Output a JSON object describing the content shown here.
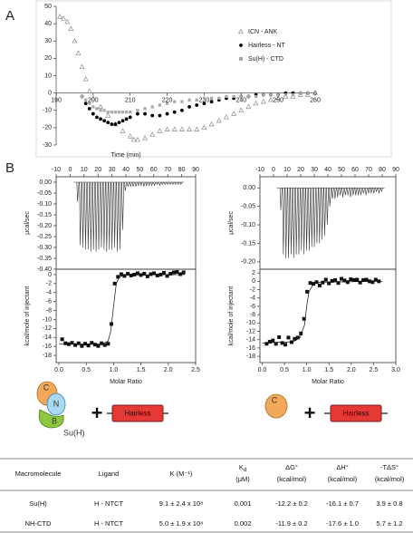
{
  "panel_labels": [
    "A",
    "B"
  ],
  "chart_data": [
    {
      "type": "scatter",
      "frame": false,
      "legend": "upper right",
      "xlim": [
        190,
        260
      ],
      "xticks": [
        190,
        200,
        210,
        220,
        230,
        240,
        250,
        260
      ],
      "ylim": [
        -30,
        50
      ],
      "yticks": [
        -30,
        -20,
        -10,
        0,
        10,
        20,
        30,
        40,
        50
      ],
      "series": [
        {
          "name": "ICN - ANK",
          "color": "#8c8c8c",
          "marker": "triangle",
          "x": [
            191,
            192,
            193,
            194,
            195,
            196,
            197,
            198,
            199,
            200,
            202,
            204,
            206,
            208,
            210,
            211,
            212,
            214,
            216,
            218,
            220,
            222,
            224,
            226,
            228,
            230,
            232,
            234,
            236,
            238,
            240,
            242,
            244,
            246,
            248,
            250,
            252,
            254,
            256,
            258,
            260
          ],
          "values": [
            44,
            43,
            41,
            37,
            30,
            23,
            15,
            8,
            1,
            -3,
            -8,
            -13,
            -18,
            -22,
            -25,
            -27,
            -27,
            -26,
            -24,
            -22,
            -21,
            -21,
            -21,
            -21,
            -21,
            -20,
            -18,
            -16,
            -14,
            -12,
            -10,
            -8,
            -6,
            -5,
            -4,
            -3,
            -2,
            -2,
            -1,
            -1,
            0
          ]
        },
        {
          "name": "Hairless - NT",
          "color": "#000000",
          "marker": "circle",
          "x": [
            197,
            198,
            199,
            200,
            201,
            202,
            203,
            204,
            205,
            206,
            207,
            208,
            209,
            210,
            212,
            214,
            216,
            218,
            220,
            222,
            224,
            226,
            228,
            230,
            232,
            234,
            236,
            238,
            240,
            242,
            244,
            246,
            248,
            250,
            252,
            254,
            256,
            258,
            260
          ],
          "values": [
            -2,
            -6,
            -9,
            -12,
            -14,
            -15,
            -16,
            -17,
            -18,
            -18,
            -17,
            -16,
            -15,
            -14,
            -12,
            -12,
            -13,
            -13,
            -12,
            -11,
            -10,
            -8,
            -7,
            -6,
            -5,
            -4,
            -3,
            -3,
            -2,
            -2,
            -1,
            -1,
            -1,
            -1,
            0,
            0,
            0,
            0,
            0
          ]
        },
        {
          "name": "Su(H) - CTD",
          "color": "#a6a6a6",
          "marker": "square",
          "x": [
            197,
            198,
            199,
            200,
            201,
            202,
            203,
            204,
            205,
            206,
            207,
            208,
            209,
            210,
            212,
            214,
            216,
            218,
            220,
            222,
            224,
            226,
            228,
            230,
            232,
            234,
            236,
            238,
            240,
            242,
            244,
            246,
            248,
            250,
            252,
            254,
            256,
            258,
            260
          ],
          "values": [
            -2,
            -4,
            -6,
            -8,
            -9,
            -10,
            -10,
            -11,
            -11,
            -11,
            -11,
            -11,
            -11,
            -11,
            -10,
            -9,
            -8,
            -7,
            -6,
            -5,
            -5,
            -4,
            -4,
            -3,
            -3,
            -3,
            -2,
            -2,
            -2,
            -2,
            -2,
            -1,
            -1,
            -1,
            -1,
            -1,
            0,
            0,
            0
          ]
        }
      ]
    },
    {
      "type": "injection",
      "frame": true,
      "xaxis_position": "top",
      "x_label": "Time (min)",
      "y_label": "μcal/sec",
      "xlim": [
        -10,
        90
      ],
      "xticks": [
        -10,
        0,
        10,
        20,
        30,
        40,
        50,
        60,
        70,
        80,
        90
      ],
      "ylim": [
        -0.4,
        0.025
      ],
      "yticks": [
        {
          "value": 0,
          "label": "0.00"
        },
        -0.05,
        {
          "value": -0.1,
          "label": "-0.10"
        },
        -0.15,
        {
          "value": -0.2,
          "label": "-0.20"
        },
        -0.25,
        {
          "value": -0.3,
          "label": "-0.30"
        },
        -0.35,
        {
          "value": -0.4,
          "label": "-0.40"
        }
      ],
      "series": [
        {
          "color": "#333333",
          "x": [
            5,
            6.9,
            8.8,
            10.7,
            12.6,
            14.5,
            16.4,
            18.3,
            20.2,
            22.1,
            24,
            25.9,
            27.8,
            29.7,
            31.6,
            33.5,
            35.4,
            37.3,
            39.2,
            41.1,
            43,
            44.9,
            46.8,
            48.7,
            50.6,
            52.5,
            54.4,
            56.3,
            58.2,
            60.1,
            62,
            63.9,
            65.8,
            67.7,
            69.6,
            71.5,
            73.4,
            75.3,
            77.2,
            79.1
          ],
          "values": [
            -0.09,
            -0.29,
            -0.3,
            -0.31,
            -0.31,
            -0.32,
            -0.31,
            -0.32,
            -0.31,
            -0.3,
            -0.31,
            -0.32,
            -0.31,
            -0.31,
            -0.3,
            -0.32,
            -0.31,
            -0.22,
            -0.04,
            -0.02,
            -0.02,
            -0.02,
            -0.02,
            -0.015,
            -0.015,
            -0.02,
            -0.015,
            -0.015,
            -0.015,
            -0.015,
            -0.01,
            -0.015,
            -0.01,
            -0.01,
            -0.01,
            -0.01,
            -0.01,
            -0.01,
            -0.01,
            -0.01
          ]
        }
      ]
    },
    {
      "type": "scatter",
      "frame": true,
      "xaxis_position": "bottom",
      "x_label": "Molar Ratio",
      "y_label": "kcal/mole of injectant",
      "xlim": [
        -0.05,
        2.5
      ],
      "xticks": [
        {
          "value": 0,
          "label": "0.0"
        },
        0.5,
        {
          "value": 1,
          "label": "1.0"
        },
        1.5,
        {
          "value": 2,
          "label": "2.0"
        },
        2.5
      ],
      "ylim": [
        -19.6,
        1.2
      ],
      "yticks": [
        -18,
        -16,
        -14,
        -12,
        -10,
        -8,
        -6,
        -4,
        -2,
        0
      ],
      "series": [
        {
          "color": "#111111",
          "marker": "square",
          "x": [
            0.06,
            0.12,
            0.18,
            0.24,
            0.3,
            0.36,
            0.42,
            0.48,
            0.54,
            0.6,
            0.66,
            0.72,
            0.78,
            0.84,
            0.9,
            0.96,
            1.02,
            1.08,
            1.14,
            1.2,
            1.26,
            1.32,
            1.38,
            1.44,
            1.5,
            1.56,
            1.62,
            1.68,
            1.74,
            1.8,
            1.86,
            1.92,
            1.98,
            2.04,
            2.1,
            2.16,
            2.22,
            2.28
          ],
          "values": [
            -14.4,
            -15.3,
            -15.5,
            -15.2,
            -15.7,
            -15.3,
            -15.9,
            -15.4,
            -15.8,
            -15.2,
            -15.6,
            -15.9,
            -15.3,
            -15.7,
            -15.4,
            -11,
            -2,
            -0.5,
            0.1,
            -0.3,
            0.2,
            -0.2,
            0,
            0.3,
            -0.1,
            0.2,
            -0.4,
            0.1,
            0.3,
            -0.2,
            0,
            0.4,
            -0.3,
            0.2,
            0.5,
            0.6,
            0.1,
            0.5
          ]
        },
        {
          "color": "#111111",
          "x": [
            0,
            0.8,
            0.9,
            0.95,
            1,
            1.05,
            1.1,
            1.2,
            2.3
          ],
          "values": [
            -15.5,
            -15.4,
            -14.8,
            -12.5,
            -7,
            -2,
            -0.6,
            -0.1,
            0
          ]
        }
      ]
    },
    {
      "type": "injection",
      "frame": true,
      "xaxis_position": "top",
      "y_label": "μcal/sec",
      "xlim": [
        -10,
        90
      ],
      "xticks": [
        -10,
        0,
        10,
        20,
        30,
        40,
        50,
        60,
        70,
        80,
        90
      ],
      "ylim": [
        -0.22,
        0.03
      ],
      "yticks": [
        {
          "value": 0,
          "label": "0.00"
        },
        -0.05,
        {
          "value": -0.1,
          "label": "-0.10"
        },
        -0.15,
        {
          "value": -0.2,
          "label": "-0.20"
        }
      ],
      "series": [
        {
          "color": "#333333",
          "x": [
            5,
            6.9,
            8.8,
            10.7,
            12.6,
            14.5,
            16.4,
            18.3,
            20.2,
            22.1,
            24,
            25.9,
            27.8,
            29.7,
            31.6,
            33.5,
            35.4,
            37.3,
            39.2,
            41.1,
            43,
            44.9,
            46.8,
            48.7,
            50.6,
            52.5,
            54.4,
            56.3,
            58.2,
            60.1,
            62,
            63.9,
            65.8,
            67.7,
            69.6,
            71.5,
            73.4,
            75.3,
            77.2,
            79.1
          ],
          "values": [
            -0.06,
            -0.18,
            -0.19,
            -0.19,
            -0.18,
            -0.19,
            -0.18,
            -0.18,
            -0.17,
            -0.18,
            -0.17,
            -0.17,
            -0.16,
            -0.16,
            -0.15,
            -0.15,
            -0.14,
            -0.13,
            -0.1,
            -0.05,
            -0.03,
            -0.03,
            -0.025,
            -0.02,
            -0.025,
            -0.02,
            -0.02,
            -0.025,
            -0.02,
            -0.02,
            -0.02,
            -0.02,
            -0.015,
            -0.02,
            -0.015,
            -0.015,
            -0.015,
            -0.01,
            -0.015,
            -0.01
          ]
        }
      ]
    },
    {
      "type": "scatter",
      "frame": true,
      "xaxis_position": "bottom",
      "x_label": "Molar Ratio",
      "y_label": "kcal/mole of injectant",
      "xlim": [
        -0.05,
        3
      ],
      "xticks": [
        {
          "value": 0,
          "label": "0.0"
        },
        0.5,
        {
          "value": 1,
          "label": "1.0"
        },
        1.5,
        {
          "value": 2,
          "label": "2.0"
        },
        2.5,
        {
          "value": 3,
          "label": "3.0"
        }
      ],
      "ylim": [
        -19.5,
        2.9
      ],
      "yticks": [
        -18,
        -16,
        -14,
        -12,
        -10,
        -8,
        -6,
        -4,
        -2,
        0,
        2
      ],
      "series": [
        {
          "color": "#111111",
          "marker": "square",
          "x": [
            0.1,
            0.17,
            0.24,
            0.31,
            0.38,
            0.45,
            0.52,
            0.59,
            0.66,
            0.73,
            0.8,
            0.87,
            0.94,
            1.01,
            1.08,
            1.15,
            1.22,
            1.29,
            1.36,
            1.43,
            1.5,
            1.57,
            1.64,
            1.71,
            1.78,
            1.85,
            1.92,
            1.99,
            2.06,
            2.13,
            2.2,
            2.27,
            2.34,
            2.41,
            2.48,
            2.55,
            2.62
          ],
          "values": [
            -15,
            -14.5,
            -14.2,
            -15,
            -13.4,
            -14.8,
            -15.2,
            -13.5,
            -14.6,
            -13.8,
            -13.5,
            -12.5,
            -9,
            -2.5,
            -0.4,
            -0.6,
            -0.2,
            -1,
            -0.3,
            0.4,
            -0.5,
            0.1,
            0.3,
            -0.4,
            0.6,
            0.2,
            -0.2,
            0.5,
            0.3,
            0.4,
            -0.3,
            0.3,
            0.4,
            0,
            -0.2,
            0.4,
            0
          ]
        },
        {
          "color": "#111111",
          "x": [
            0,
            0.7,
            0.85,
            0.95,
            1,
            1.05,
            1.15,
            1.3,
            2.7
          ],
          "values": [
            -14.8,
            -14.5,
            -13.5,
            -10.5,
            -6,
            -2.5,
            -0.7,
            -0.2,
            0
          ]
        }
      ]
    }
  ],
  "diagram": {
    "left": {
      "domains": [
        "C",
        "N",
        "B"
      ],
      "name": "Su(H)",
      "plus": "+",
      "partner": "Hairless"
    },
    "right": {
      "domains": [
        "C"
      ],
      "plus": "+",
      "partner": "Hairless"
    }
  },
  "table": {
    "headers": [
      [
        "Macromolecule"
      ],
      [
        "Ligand"
      ],
      [
        "K (M⁻¹)"
      ],
      [
        [
          "K",
          "d"
        ],
        "(μM)"
      ],
      [
        "ΔG°",
        "(kcal/mol)"
      ],
      [
        "ΔH°",
        "(kcal/mol)"
      ],
      [
        "-TΔS°",
        "(kcal/mol)"
      ]
    ],
    "rows": [
      [
        "Su(H)",
        "H - NTCT",
        "9.1 ± 2.4 x 10⁸",
        "0.001",
        "-12.2 ± 0.2",
        "-16.1 ± 0.7",
        "3.9 ± 0.8"
      ],
      [
        "NH-CTD",
        "H - NTCT",
        "5.0 ± 1.9 x 10⁸",
        "0.002",
        "-11.9 ± 0.2",
        "-17.6 ± 1.0",
        "5.7 ± 1.2"
      ]
    ]
  }
}
